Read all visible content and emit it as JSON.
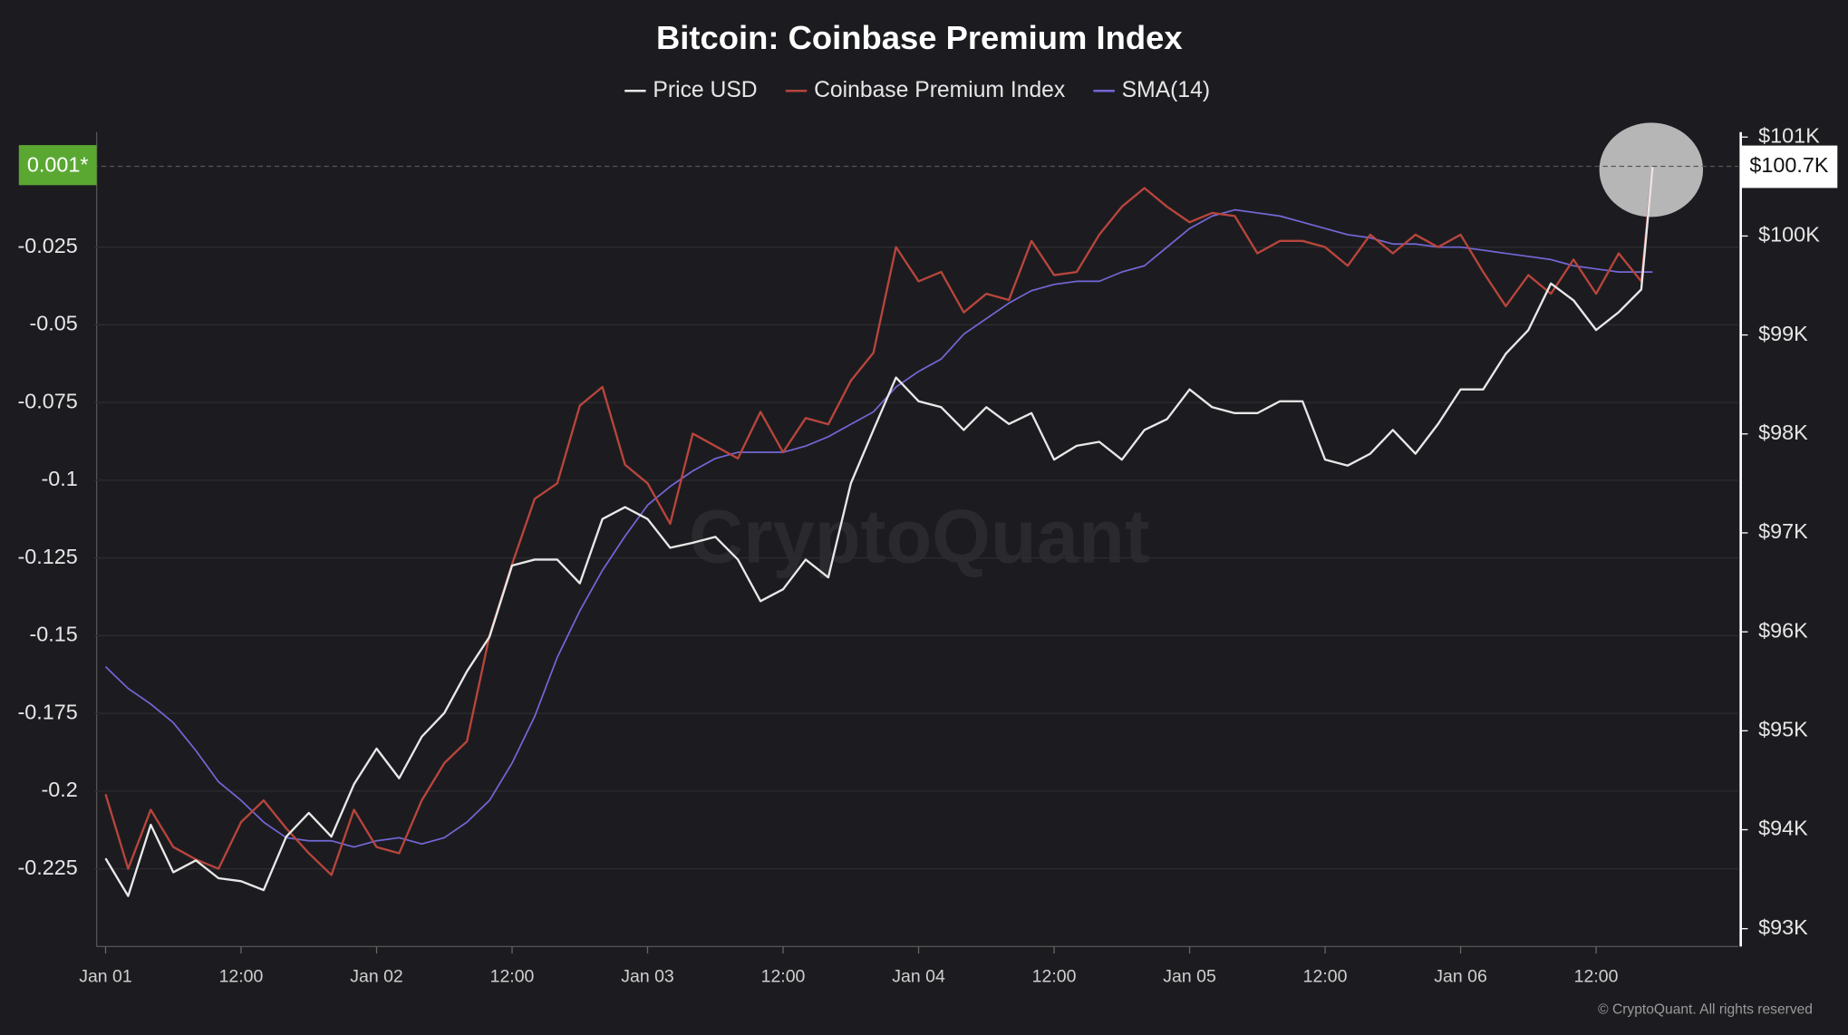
{
  "chart_data": {
    "type": "line",
    "title": "Bitcoin: Coinbase Premium Index",
    "watermark": "CryptoQuant",
    "footer": "© CryptoQuant. All rights reserved",
    "x": [
      0,
      2,
      4,
      6,
      8,
      10,
      12,
      14,
      16,
      18,
      20,
      22,
      24,
      26,
      28,
      30,
      32,
      34,
      36,
      38,
      40,
      42,
      44,
      46,
      48,
      50,
      52,
      54,
      56,
      58,
      60,
      62,
      64,
      66,
      68,
      70,
      72,
      74,
      76,
      78,
      80,
      82,
      84,
      86,
      88,
      90,
      92,
      94,
      96,
      98,
      100,
      102,
      104,
      106,
      108,
      110,
      112,
      114,
      116,
      118,
      120,
      122,
      124,
      126,
      128,
      130,
      132,
      134,
      136,
      137
    ],
    "xlim": [
      -1,
      144.6
    ],
    "xticks": [
      {
        "value": 0,
        "label": "Jan 01"
      },
      {
        "value": 12,
        "label": "12:00"
      },
      {
        "value": 24,
        "label": "Jan 02"
      },
      {
        "value": 36,
        "label": "12:00"
      },
      {
        "value": 48,
        "label": "Jan 03"
      },
      {
        "value": 60,
        "label": "12:00"
      },
      {
        "value": 72,
        "label": "Jan 04"
      },
      {
        "value": 84,
        "label": "12:00"
      },
      {
        "value": 96,
        "label": "Jan 05"
      },
      {
        "value": 108,
        "label": "12:00"
      },
      {
        "value": 120,
        "label": "Jan 06"
      },
      {
        "value": 132,
        "label": "12:00"
      }
    ],
    "ylim": [
      -0.25,
      0.012
    ],
    "yticks": [
      -0.225,
      -0.2,
      -0.175,
      -0.15,
      -0.125,
      -0.1,
      -0.075,
      -0.05,
      -0.025
    ],
    "y2lim": [
      92820,
      101050
    ],
    "y2ticks": [
      {
        "value": 93000,
        "label": "$93K"
      },
      {
        "value": 94000,
        "label": "$94K"
      },
      {
        "value": 95000,
        "label": "$95K"
      },
      {
        "value": 96000,
        "label": "$96K"
      },
      {
        "value": 97000,
        "label": "$97K"
      },
      {
        "value": 98000,
        "label": "$98K"
      },
      {
        "value": 99000,
        "label": "$99K"
      },
      {
        "value": 100000,
        "label": "$100K"
      },
      {
        "value": 101000,
        "label": "$101K"
      }
    ],
    "grid": true,
    "current_labels": {
      "y": {
        "value": 0.001,
        "label": "0.001*",
        "color": "#5aa832"
      },
      "y2": {
        "value": 100700,
        "label": "$100.7K",
        "color": "#ffffff"
      }
    },
    "series": [
      {
        "name": "Price USD",
        "color": "#e8e8e8",
        "axis": "y2",
        "values": [
          93710,
          93330,
          94050,
          93570,
          93690,
          93510,
          93480,
          93390,
          93930,
          94170,
          93930,
          94460,
          94820,
          94520,
          94940,
          95180,
          95600,
          95950,
          96670,
          96730,
          96730,
          96490,
          97140,
          97260,
          97140,
          96850,
          96900,
          96960,
          96730,
          96310,
          96430,
          96730,
          96550,
          97500,
          98040,
          98570,
          98330,
          98270,
          98040,
          98270,
          98100,
          98210,
          97740,
          97880,
          97920,
          97740,
          98040,
          98150,
          98450,
          98270,
          98210,
          98210,
          98330,
          98330,
          97740,
          97680,
          97800,
          98040,
          97800,
          98100,
          98450,
          98450,
          98810,
          99050,
          99520,
          99350,
          99050,
          99230,
          99460,
          100700
        ]
      },
      {
        "name": "Coinbase Premium Index",
        "color": "#b8453c",
        "values": [
          -0.201,
          -0.225,
          -0.206,
          -0.218,
          -0.222,
          -0.225,
          -0.21,
          -0.203,
          -0.212,
          -0.22,
          -0.227,
          -0.206,
          -0.218,
          -0.22,
          -0.203,
          -0.191,
          -0.184,
          -0.15,
          -0.127,
          -0.106,
          -0.101,
          -0.076,
          -0.07,
          -0.095,
          -0.101,
          -0.114,
          -0.085,
          -0.089,
          -0.093,
          -0.078,
          -0.091,
          -0.08,
          -0.082,
          -0.068,
          -0.059,
          -0.025,
          -0.036,
          -0.033,
          -0.046,
          -0.04,
          -0.042,
          -0.023,
          -0.034,
          -0.033,
          -0.021,
          -0.012,
          -0.006,
          -0.012,
          -0.017,
          -0.014,
          -0.015,
          -0.027,
          -0.023,
          -0.023,
          -0.025,
          -0.031,
          -0.021,
          -0.027,
          -0.021,
          -0.025,
          -0.021,
          -0.033,
          -0.044,
          -0.034,
          -0.04,
          -0.029,
          -0.04,
          -0.027,
          -0.036,
          0.001
        ]
      },
      {
        "name": "SMA(14)",
        "color": "#7467d8",
        "values": [
          -0.16,
          -0.167,
          -0.172,
          -0.178,
          -0.187,
          -0.197,
          -0.203,
          -0.21,
          -0.215,
          -0.216,
          -0.216,
          -0.218,
          -0.216,
          -0.215,
          -0.217,
          -0.215,
          -0.21,
          -0.203,
          -0.191,
          -0.176,
          -0.157,
          -0.142,
          -0.129,
          -0.118,
          -0.108,
          -0.102,
          -0.097,
          -0.093,
          -0.091,
          -0.091,
          -0.091,
          -0.089,
          -0.086,
          -0.082,
          -0.078,
          -0.07,
          -0.065,
          -0.061,
          -0.053,
          -0.048,
          -0.043,
          -0.039,
          -0.037,
          -0.036,
          -0.036,
          -0.033,
          -0.031,
          -0.025,
          -0.019,
          -0.015,
          -0.013,
          -0.014,
          -0.015,
          -0.017,
          -0.019,
          -0.021,
          -0.022,
          -0.024,
          -0.024,
          -0.025,
          -0.025,
          -0.026,
          -0.027,
          -0.028,
          -0.029,
          -0.031,
          -0.032,
          -0.033,
          -0.033,
          -0.033
        ]
      }
    ]
  }
}
